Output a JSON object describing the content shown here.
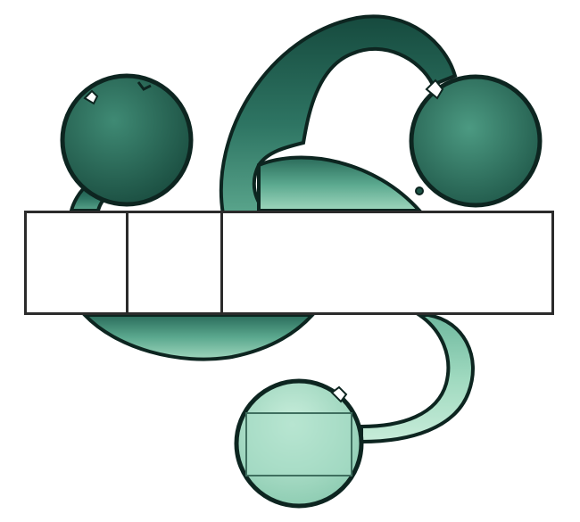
{
  "logo": {
    "icon": "trefoil-knot-logo-icon",
    "colors": {
      "dark_green": "#1f5547",
      "mid_green": "#3f8a74",
      "light_green": "#9fd9bf",
      "outline": "#0d2520",
      "band_border": "#2b2b2b",
      "band_fill": "#ffffff"
    }
  },
  "band": {
    "cells": [
      {
        "text": ""
      },
      {
        "text": ""
      },
      {
        "text": ""
      }
    ]
  },
  "lower_box": {
    "text": ""
  }
}
